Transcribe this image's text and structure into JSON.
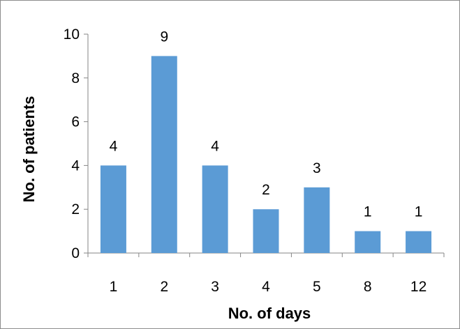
{
  "chart_data": {
    "type": "bar",
    "title": "",
    "xlabel": "No. of days",
    "ylabel": "No. of patients",
    "categories": [
      "1",
      "2",
      "3",
      "4",
      "5",
      "8",
      "12"
    ],
    "values": [
      4,
      9,
      4,
      2,
      3,
      1,
      1
    ],
    "data_labels": [
      "4",
      "9",
      "4",
      "2",
      "3",
      "1",
      "1"
    ],
    "ylim": [
      0,
      10
    ],
    "yticks": [
      "0",
      "2",
      "4",
      "6",
      "8",
      "10"
    ],
    "grid": false,
    "legend": "none",
    "bar_color": "#5B9BD5"
  }
}
